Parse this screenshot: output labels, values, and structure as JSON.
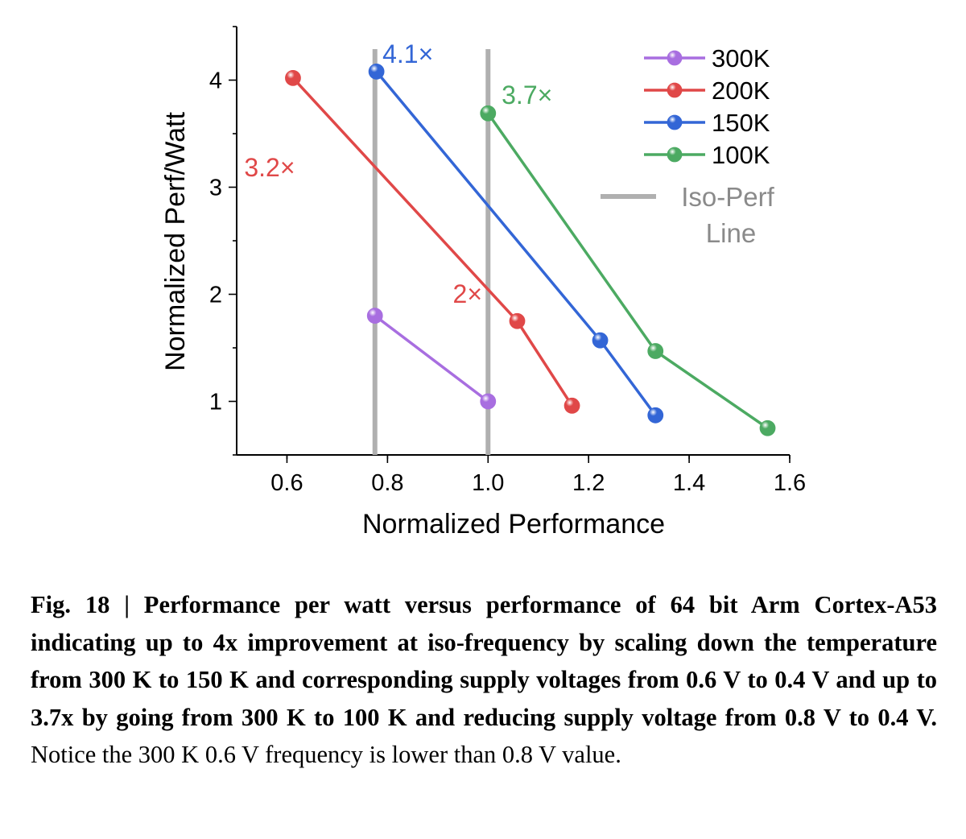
{
  "chart_data": {
    "type": "line",
    "xlabel": "Normalized Performance",
    "ylabel": "Normalized Perf/Watt",
    "xlim": [
      0.5,
      1.6
    ],
    "ylim": [
      0.5,
      4.5
    ],
    "xticks": [
      0.6,
      0.8,
      1.0,
      1.2,
      1.4,
      1.6
    ],
    "xtick_labels": [
      "0.6",
      "0.8",
      "1.0",
      "1.2",
      "1.4",
      "1.6"
    ],
    "yticks": [
      1,
      2,
      3,
      4
    ],
    "ytick_labels": [
      "1",
      "2",
      "3",
      "4"
    ],
    "series": [
      {
        "name": "300K",
        "color": "#a86ee0",
        "x": [
          0.775,
          1.0
        ],
        "y": [
          1.8,
          1.0
        ]
      },
      {
        "name": "200K",
        "color": "#e04848",
        "x": [
          0.612,
          1.058,
          1.167
        ],
        "y": [
          4.02,
          1.75,
          0.96
        ]
      },
      {
        "name": "150K",
        "color": "#3366d6",
        "x": [
          0.778,
          1.223,
          1.333
        ],
        "y": [
          4.08,
          1.57,
          0.87
        ]
      },
      {
        "name": "100K",
        "color": "#4caa62",
        "x": [
          1.0,
          1.333,
          1.556
        ],
        "y": [
          3.69,
          1.47,
          0.75
        ]
      }
    ],
    "iso_perf_lines": {
      "x": [
        0.775,
        1.0
      ],
      "color": "#b0b0b0"
    },
    "legend": {
      "position": "top-right",
      "iso_label_line1": "Iso-Perf",
      "iso_label_line2": "Line"
    },
    "annotations": [
      {
        "text": "4.1×",
        "color": "#3366d6",
        "x": 0.79,
        "y": 4.16
      },
      {
        "text": "3.7×",
        "color": "#4caa62",
        "x": 1.027,
        "y": 3.78
      },
      {
        "text": "3.2×",
        "color": "#e04848",
        "x": 0.515,
        "y": 3.1
      },
      {
        "text": "2×",
        "color": "#e04848",
        "x": 0.93,
        "y": 1.92
      }
    ]
  },
  "caption": {
    "bold": "Fig. 18 | Performance per watt versus performance of 64 bit Arm Cortex-A53 indicating up to 4x improvement at iso-frequency by scaling down the temperature from 300 K to 150 K and corresponding supply voltages from 0.6 V to 0.4 V and up to 3.7x by going from 300 K to 100 K and reducing supply voltage from 0.8 V to 0.4 V.",
    "normal": " Notice the 300 K 0.6 V frequency is lower than 0.8 V value."
  }
}
